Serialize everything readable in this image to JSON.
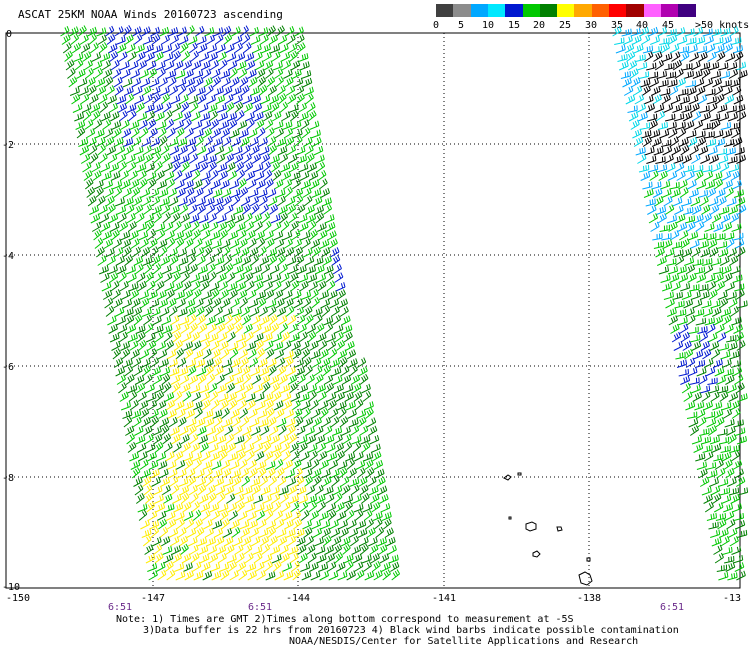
{
  "title": "ASCAT 25KM NOAA Winds 20160723 ascending",
  "colorbar": {
    "colors": [
      "#404040",
      "#8c8c8c",
      "#00a8ff",
      "#00e8ff",
      "#0018d0",
      "#00c800",
      "#008000",
      "#ffff00",
      "#ffa800",
      "#ff6000",
      "#ff0000",
      "#a00000",
      "#ff60ff",
      "#b000b0",
      "#400080"
    ],
    "labels": [
      "0",
      "5",
      "10",
      "15",
      "20",
      "25",
      "30",
      "35",
      "40",
      "45",
      ">50 knots"
    ]
  },
  "axes": {
    "x_ticks": [
      "-150",
      "-147",
      "-144",
      "-141",
      "-138",
      "-13"
    ],
    "y_ticks": [
      "0",
      "-2",
      "-4",
      "-6",
      "-8",
      "-10"
    ]
  },
  "times": [
    "6:51",
    "6:51",
    "6:51"
  ],
  "notes": [
    "Note: 1) Times are GMT 2)Times along bottom correspond to measurement at -5S",
    "3)Data buffer is 22 hrs from 20160723 4) Black wind barbs indicate possible contamination",
    "NOAA/NESDIS/Center for Satellite Applications and Research"
  ]
}
